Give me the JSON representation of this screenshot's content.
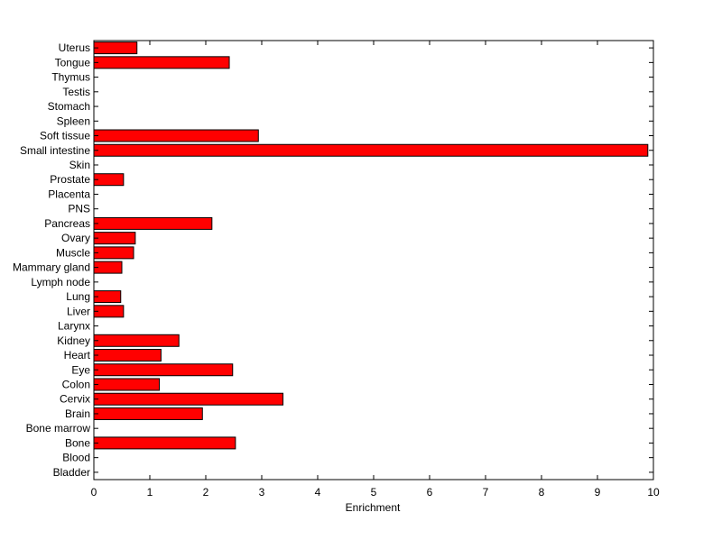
{
  "chart_data": {
    "type": "bar",
    "orientation": "horizontal",
    "categories": [
      "Uterus",
      "Tongue",
      "Thymus",
      "Testis",
      "Stomach",
      "Spleen",
      "Soft tissue",
      "Small intestine",
      "Skin",
      "Prostate",
      "Placenta",
      "PNS",
      "Pancreas",
      "Ovary",
      "Muscle",
      "Mammary gland",
      "Lymph node",
      "Lung",
      "Liver",
      "Larynx",
      "Kidney",
      "Heart",
      "Eye",
      "Colon",
      "Cervix",
      "Brain",
      "Bone marrow",
      "Bone",
      "Blood",
      "Bladder"
    ],
    "values": [
      0.77,
      2.42,
      0,
      0,
      0,
      0,
      2.94,
      9.9,
      0,
      0.53,
      0,
      0,
      2.11,
      0.74,
      0.71,
      0.5,
      0,
      0.48,
      0.53,
      0,
      1.52,
      1.2,
      2.48,
      1.17,
      3.38,
      1.94,
      0,
      2.53,
      0,
      0
    ],
    "title": "",
    "xlabel": "Enrichment",
    "ylabel": "",
    "xlim": [
      0,
      10
    ],
    "xticks": [
      0,
      1,
      2,
      3,
      4,
      5,
      6,
      7,
      8,
      9,
      10
    ],
    "grid": false,
    "legend": "none",
    "bar_color": "#ff0000",
    "edge_color": "#000000"
  }
}
